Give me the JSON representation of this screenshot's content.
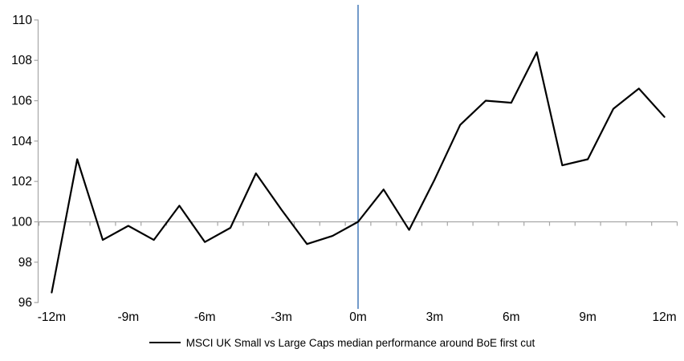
{
  "chart_data": {
    "type": "line",
    "title": "",
    "xlabel": "",
    "ylabel": "",
    "x_unit_suffix": "m",
    "x": [
      -12,
      -11,
      -10,
      -9,
      -8,
      -7,
      -6,
      -5,
      -4,
      -3,
      -2,
      -1,
      0,
      1,
      2,
      3,
      4,
      5,
      6,
      7,
      8,
      9,
      10,
      11,
      12
    ],
    "series": [
      {
        "name": "MSCI UK Small vs Large Caps median performance around BoE first cut",
        "color": "#000000",
        "values": [
          96.5,
          103.1,
          99.1,
          99.8,
          99.1,
          100.8,
          99.0,
          99.7,
          102.4,
          100.6,
          98.9,
          99.3,
          100.0,
          101.6,
          99.6,
          102.1,
          104.8,
          106.0,
          105.9,
          108.4,
          102.8,
          103.1,
          105.6,
          106.6,
          105.2
        ]
      }
    ],
    "ylim": [
      96,
      110
    ],
    "xlim": [
      -12.5,
      12.5
    ],
    "y_tick_labels": [
      "96",
      "98",
      "100",
      "102",
      "104",
      "106",
      "108",
      "110"
    ],
    "y_tick_values": [
      96,
      98,
      100,
      102,
      104,
      106,
      108,
      110
    ],
    "x_tick_labels": [
      "-12m",
      "-9m",
      "-6m",
      "-3m",
      "0m",
      "3m",
      "6m",
      "9m",
      "12m"
    ],
    "x_tick_positions": [
      -12,
      -9,
      -6,
      -3,
      0,
      3,
      6,
      9,
      12
    ],
    "minor_x_tick_step": 1,
    "baseline_value": 100,
    "event_line_x": 0,
    "grid": "baseline-only",
    "legend_position": "bottom-center",
    "colors": {
      "axis": "#a6a6a6",
      "baseline": "#a6a6a6",
      "event_line": "#4f81bd",
      "series": "#000000",
      "text": "#000000",
      "background": "#ffffff"
    }
  },
  "legend": {
    "label": "MSCI UK Small vs Large Caps median performance around BoE first cut"
  }
}
